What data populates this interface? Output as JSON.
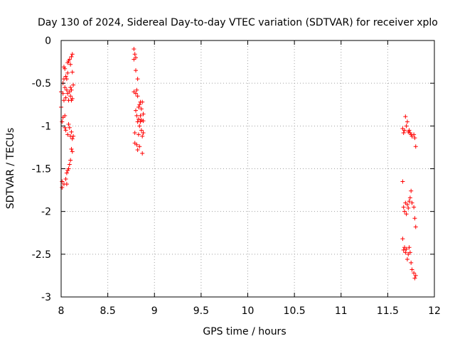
{
  "chart_data": {
    "type": "scatter",
    "title": "Day 130 of 2024, Sidereal Day-to-day VTEC variation (SDTVAR) for receiver xplo",
    "xlabel": "GPS time / hours",
    "ylabel": "SDTVAR / TECUs",
    "xlim": [
      8,
      12
    ],
    "ylim": [
      -3,
      0
    ],
    "xticks": [
      8,
      8.5,
      9,
      9.5,
      10,
      10.5,
      11,
      11.5,
      12
    ],
    "xtick_labels": [
      "8",
      "8.5",
      "9",
      "9.5",
      "10",
      "10.5",
      "11",
      "11.5",
      "12"
    ],
    "yticks": [
      0,
      -0.5,
      -1,
      -1.5,
      -2,
      -2.5,
      -3
    ],
    "ytick_labels": [
      "0",
      "-0.5",
      "-1",
      "-1.5",
      "-2",
      "-2.5",
      "-3"
    ],
    "grid": true,
    "marker": "+",
    "color": "#ff0000",
    "series": [
      {
        "points": [
          [
            8.0,
            -0.6
          ],
          [
            8.0,
            -0.78
          ],
          [
            8.01,
            -0.95
          ],
          [
            8.01,
            -1.72
          ],
          [
            8.01,
            -1.65
          ],
          [
            8.02,
            -0.5
          ],
          [
            8.02,
            -0.62
          ],
          [
            8.02,
            -0.9
          ],
          [
            8.03,
            -0.31
          ],
          [
            8.03,
            -0.45
          ],
          [
            8.03,
            -0.7
          ],
          [
            8.03,
            -1.68
          ],
          [
            8.04,
            -0.33
          ],
          [
            8.04,
            -0.55
          ],
          [
            8.04,
            -0.88
          ],
          [
            8.04,
            -1.02
          ],
          [
            8.05,
            -0.42
          ],
          [
            8.05,
            -0.67
          ],
          [
            8.05,
            -1.05
          ],
          [
            8.05,
            -1.62
          ],
          [
            8.06,
            -0.58
          ],
          [
            8.06,
            -0.45
          ],
          [
            8.06,
            -1.55
          ],
          [
            8.06,
            -1.68
          ],
          [
            8.07,
            -0.26
          ],
          [
            8.07,
            -0.38
          ],
          [
            8.07,
            -0.62
          ],
          [
            8.07,
            -1.1
          ],
          [
            8.07,
            -1.52
          ],
          [
            8.08,
            -0.24
          ],
          [
            8.08,
            -0.7
          ],
          [
            8.08,
            -0.98
          ],
          [
            8.08,
            -1.5
          ],
          [
            8.09,
            -0.22
          ],
          [
            8.09,
            -0.6
          ],
          [
            8.09,
            -1.02
          ],
          [
            8.09,
            -1.45
          ],
          [
            8.1,
            -0.28
          ],
          [
            8.1,
            -0.55
          ],
          [
            8.1,
            -0.65
          ],
          [
            8.1,
            -1.12
          ],
          [
            8.1,
            -1.4
          ],
          [
            8.11,
            -0.19
          ],
          [
            8.11,
            -0.58
          ],
          [
            8.11,
            -0.7
          ],
          [
            8.11,
            -1.07
          ],
          [
            8.11,
            -1.27
          ],
          [
            8.12,
            -0.16
          ],
          [
            8.12,
            -0.37
          ],
          [
            8.12,
            -0.68
          ],
          [
            8.12,
            -1.15
          ],
          [
            8.12,
            -1.3
          ],
          [
            8.13,
            -0.52
          ],
          [
            8.13,
            -1.12
          ]
        ]
      },
      {
        "points": [
          [
            8.78,
            -0.1
          ],
          [
            8.78,
            -0.22
          ],
          [
            8.78,
            -0.6
          ],
          [
            8.79,
            -0.16
          ],
          [
            8.79,
            -1.08
          ],
          [
            8.79,
            -1.2
          ],
          [
            8.8,
            -0.2
          ],
          [
            8.8,
            -0.35
          ],
          [
            8.8,
            -0.62
          ],
          [
            8.8,
            -0.82
          ],
          [
            8.81,
            -0.58
          ],
          [
            8.81,
            -0.88
          ],
          [
            8.81,
            -1.22
          ],
          [
            8.82,
            -0.45
          ],
          [
            8.82,
            -0.65
          ],
          [
            8.82,
            -0.95
          ],
          [
            8.82,
            -1.28
          ],
          [
            8.83,
            -0.78
          ],
          [
            8.83,
            -0.92
          ],
          [
            8.83,
            -1.1
          ],
          [
            8.84,
            -0.75
          ],
          [
            8.84,
            -1.0
          ],
          [
            8.84,
            -1.24
          ],
          [
            8.85,
            -0.72
          ],
          [
            8.85,
            -0.88
          ],
          [
            8.85,
            -0.95
          ],
          [
            8.86,
            -0.8
          ],
          [
            8.86,
            -1.05
          ],
          [
            8.86,
            -0.93
          ],
          [
            8.87,
            -0.72
          ],
          [
            8.87,
            -1.12
          ],
          [
            8.87,
            -1.32
          ],
          [
            8.88,
            -0.86
          ],
          [
            8.88,
            -0.94
          ],
          [
            8.88,
            -1.08
          ]
        ]
      },
      {
        "points": [
          [
            11.66,
            -1.03
          ],
          [
            11.66,
            -1.65
          ],
          [
            11.66,
            -2.32
          ],
          [
            11.67,
            -1.08
          ],
          [
            11.67,
            -1.95
          ],
          [
            11.67,
            -2.45
          ],
          [
            11.68,
            -1.05
          ],
          [
            11.68,
            -2.0
          ],
          [
            11.68,
            -2.42
          ],
          [
            11.69,
            -0.89
          ],
          [
            11.69,
            -1.9
          ],
          [
            11.69,
            -2.48
          ],
          [
            11.7,
            -1.0
          ],
          [
            11.7,
            -2.03
          ],
          [
            11.7,
            -2.44
          ],
          [
            11.71,
            -0.95
          ],
          [
            11.71,
            -1.92
          ],
          [
            11.71,
            -2.56
          ],
          [
            11.72,
            -1.07
          ],
          [
            11.72,
            -1.96
          ],
          [
            11.72,
            -2.5
          ],
          [
            11.73,
            -1.05
          ],
          [
            11.73,
            -1.88
          ],
          [
            11.73,
            -2.42
          ],
          [
            11.74,
            -1.08
          ],
          [
            11.74,
            -1.84
          ],
          [
            11.74,
            -2.48
          ],
          [
            11.75,
            -1.1
          ],
          [
            11.75,
            -1.76
          ],
          [
            11.75,
            -2.6
          ],
          [
            11.76,
            -1.12
          ],
          [
            11.76,
            -1.9
          ],
          [
            11.76,
            -2.68
          ],
          [
            11.78,
            -1.1
          ],
          [
            11.78,
            -1.95
          ],
          [
            11.78,
            -2.72
          ],
          [
            11.79,
            -1.14
          ],
          [
            11.79,
            -2.08
          ],
          [
            11.79,
            -2.78
          ],
          [
            11.8,
            -1.24
          ],
          [
            11.8,
            -2.18
          ],
          [
            11.8,
            -2.75
          ]
        ]
      }
    ]
  }
}
